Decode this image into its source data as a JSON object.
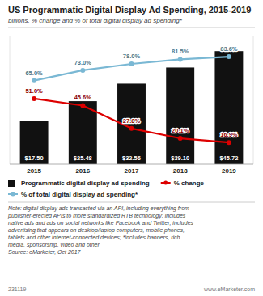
{
  "chart_data": {
    "type": "bar",
    "title": "US Programmatic Digital Display Ad Spending, 2015-2019",
    "subtitle": "billions, % change and % of total digital display ad spending*",
    "categories": [
      "2015",
      "2016",
      "2017",
      "2018",
      "2019"
    ],
    "series": [
      {
        "name": "Programmatic digital display ad spending",
        "type": "bar",
        "color": "#111111",
        "values": [
          17.5,
          25.48,
          32.56,
          39.1,
          45.72
        ],
        "value_labels": [
          "$17.50",
          "$25.48",
          "$32.56",
          "$39.10",
          "$45.72"
        ]
      },
      {
        "name": "% change",
        "type": "line",
        "color": "#dd0000",
        "marker": "circle",
        "line_style": "solid",
        "axis": "y2",
        "values": [
          51.0,
          45.6,
          27.8,
          20.1,
          16.9
        ],
        "value_labels": [
          "51.0%",
          "45.6%",
          "27.8%",
          "20.1%",
          "16.9%"
        ]
      },
      {
        "name": "% of total digital display ad spending*",
        "type": "line",
        "color": "#7ab8d4",
        "marker": "circle",
        "line_style": "solid",
        "axis": "y2",
        "values": [
          65.0,
          73.0,
          78.0,
          81.5,
          83.6
        ],
        "value_labels": [
          "65.0%",
          "73.0%",
          "78.0%",
          "81.5%",
          "83.6%"
        ]
      }
    ],
    "ylim": [
      0,
      52
    ],
    "yticks": [],
    "y2lim": [
      0,
      100
    ],
    "y2ticks": [],
    "grid": false,
    "legend": "bottom",
    "data_labels": true,
    "tick_labels": "x",
    "note": [
      "Note: digital display ads transacted via an API, including everything from",
      "publisher-erected APIs to more standardized RTB technology; includes",
      "native ads and ads on social networks like Facebook and Twitter; includes",
      "advertising that appears on desktop/laptop computers, mobile phones,",
      "tablets and other internet-connected devices; *includes banners, rich",
      "media, sponsorship, video and other"
    ],
    "source": "Source: eMarketer, Oct 2017",
    "footer": [
      "231119",
      "www.eMarketer.com"
    ]
  }
}
